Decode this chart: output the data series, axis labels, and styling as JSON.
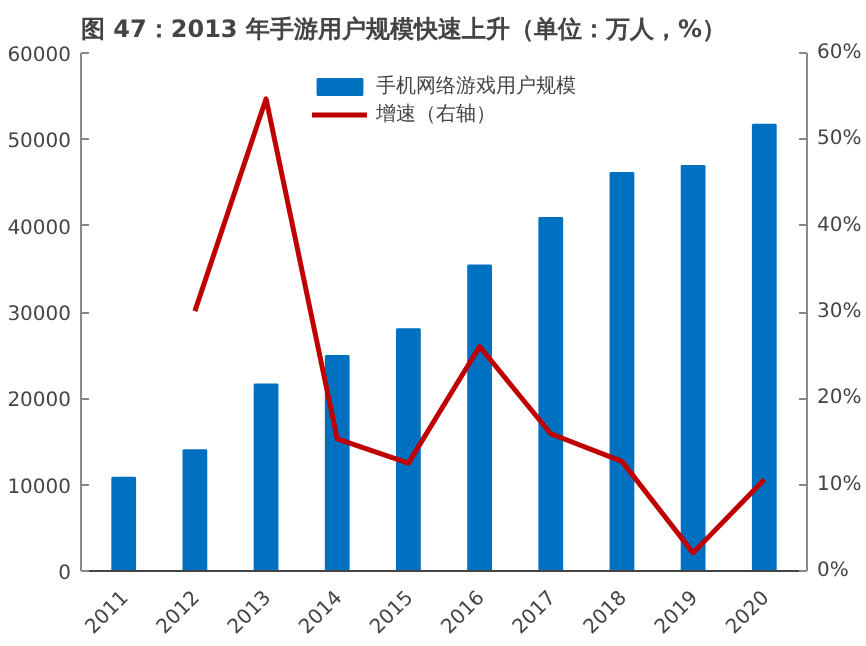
{
  "chart_data": {
    "type": "bar",
    "title": "图 47：2013 年手游用户规模快速上升（单位：万人，%）",
    "categories": [
      "2011",
      "2012",
      "2013",
      "2014",
      "2015",
      "2016",
      "2017",
      "2018",
      "2019",
      "2020"
    ],
    "series": [
      {
        "name": "手机网络游戏用户规模",
        "color": "#0070c0",
        "values": [
          10800,
          14000,
          21600,
          24900,
          28000,
          35400,
          40900,
          46100,
          46900,
          51700
        ]
      },
      {
        "name": "增速（右轴）",
        "type": "line",
        "axis": "y2",
        "color": "#c00000",
        "values": [
          null,
          30.1,
          54.7,
          15.3,
          12.5,
          26.0,
          15.9,
          12.7,
          2.1,
          10.6
        ]
      }
    ],
    "ylim": [
      0,
      60000
    ],
    "yticks": [
      0,
      10000,
      20000,
      30000,
      40000,
      50000,
      60000
    ],
    "y2lim": [
      0,
      60
    ],
    "y2ticks": [
      {
        "value": 0,
        "label": "0%"
      },
      {
        "value": 10,
        "label": "10%"
      },
      {
        "value": 20,
        "label": "20%"
      },
      {
        "value": 30,
        "label": "30%"
      },
      {
        "value": 40,
        "label": "40%"
      },
      {
        "value": 50,
        "label": "50%"
      },
      {
        "value": 60,
        "label": "60%"
      }
    ],
    "grid": false,
    "legend": "top",
    "marker": "none",
    "line_style": "solid"
  }
}
